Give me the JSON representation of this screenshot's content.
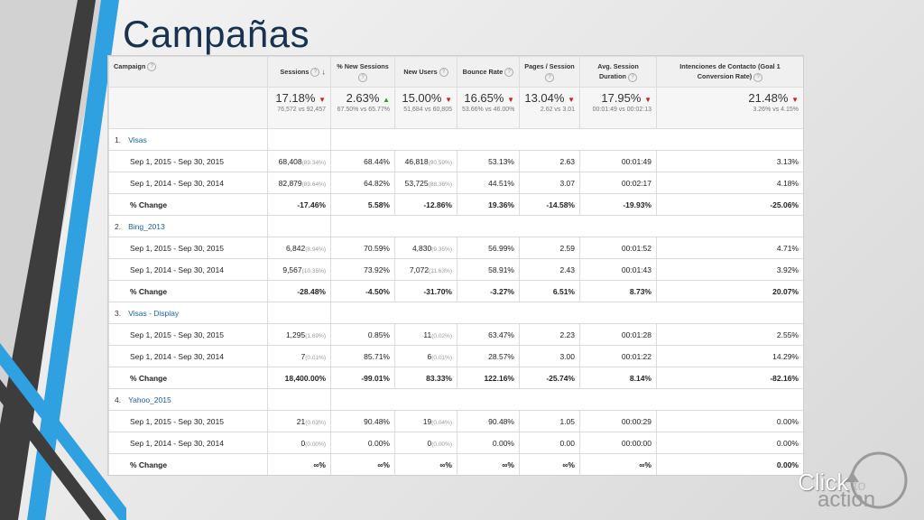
{
  "title": "Campañas",
  "logo": {
    "click": "Click",
    "to": "to",
    "action": "action"
  },
  "colors": {
    "stripe_blue": "#2fa0e0",
    "stripe_dark": "#3d3d3d",
    "title": "#16324f",
    "link": "#1a5fa8",
    "down_arrow": "#d11d1d",
    "up_arrow": "#2a9d2a"
  },
  "columns": {
    "campaign": "Campaign",
    "sessions": "Sessions",
    "new_sessions": "% New Sessions",
    "new_users": "New Users",
    "bounce_rate": "Bounce Rate",
    "pages_session": "Pages / Session",
    "avg_duration": "Avg. Session Duration",
    "intenciones": "Intenciones de Contacto (Goal 1 Conversion Rate)"
  },
  "summary": {
    "sessions": {
      "value": "17.18%",
      "detail": "76,572 vs 92,457",
      "trend": "down"
    },
    "new_sessions": {
      "value": "2.63%",
      "detail": "67.50% vs 65.77%",
      "trend": "up"
    },
    "new_users": {
      "value": "15.00%",
      "detail": "51,684 vs 60,805",
      "trend": "down"
    },
    "bounce_rate": {
      "value": "16.65%",
      "detail": "53.66% vs 46.00%",
      "trend": "down"
    },
    "pages_session": {
      "value": "13.04%",
      "detail": "2.62 vs 3.01",
      "trend": "down"
    },
    "avg_duration": {
      "value": "17.95%",
      "detail": "00:01:49 vs 00:02:13",
      "trend": "down"
    },
    "intenciones": {
      "value": "21.48%",
      "detail": "3.26% vs 4.15%",
      "trend": "down"
    }
  },
  "campaigns": [
    {
      "index": "1.",
      "name": "Visas",
      "rows": [
        {
          "label": "Sep 1, 2015 - Sep 30, 2015",
          "sessions": "68,408",
          "sessions_pct": "(89.34%)",
          "new_sessions": "68.44%",
          "new_users": "46,818",
          "new_users_pct": "(90.59%)",
          "bounce": "53.13%",
          "pages": "2.63",
          "duration": "00:01:49",
          "intenciones": "3.13%"
        },
        {
          "label": "Sep 1, 2014 - Sep 30, 2014",
          "sessions": "82,879",
          "sessions_pct": "(89.64%)",
          "new_sessions": "64.82%",
          "new_users": "53,725",
          "new_users_pct": "(88.36%)",
          "bounce": "44.51%",
          "pages": "3.07",
          "duration": "00:02:17",
          "intenciones": "4.18%"
        },
        {
          "label": "% Change",
          "sessions": "-17.46%",
          "sessions_pct": "",
          "new_sessions": "5.58%",
          "new_users": "-12.86%",
          "new_users_pct": "",
          "bounce": "19.36%",
          "pages": "-14.58%",
          "duration": "-19.93%",
          "intenciones": "-25.06%"
        }
      ]
    },
    {
      "index": "2.",
      "name": "Bing_2013",
      "rows": [
        {
          "label": "Sep 1, 2015 - Sep 30, 2015",
          "sessions": "6,842",
          "sessions_pct": "(8.94%)",
          "new_sessions": "70.59%",
          "new_users": "4,830",
          "new_users_pct": "(9.35%)",
          "bounce": "56.99%",
          "pages": "2.59",
          "duration": "00:01:52",
          "intenciones": "4.71%"
        },
        {
          "label": "Sep 1, 2014 - Sep 30, 2014",
          "sessions": "9,567",
          "sessions_pct": "(10.35%)",
          "new_sessions": "73.92%",
          "new_users": "7,072",
          "new_users_pct": "(11.63%)",
          "bounce": "58.91%",
          "pages": "2.43",
          "duration": "00:01:43",
          "intenciones": "3.92%"
        },
        {
          "label": "% Change",
          "sessions": "-28.48%",
          "sessions_pct": "",
          "new_sessions": "-4.50%",
          "new_users": "-31.70%",
          "new_users_pct": "",
          "bounce": "-3.27%",
          "pages": "6.51%",
          "duration": "8.73%",
          "intenciones": "20.07%"
        }
      ]
    },
    {
      "index": "3.",
      "name": "Visas - Display",
      "rows": [
        {
          "label": "Sep 1, 2015 - Sep 30, 2015",
          "sessions": "1,295",
          "sessions_pct": "(1.69%)",
          "new_sessions": "0.85%",
          "new_users": "11",
          "new_users_pct": "(0.02%)",
          "bounce": "63.47%",
          "pages": "2.23",
          "duration": "00:01:28",
          "intenciones": "2.55%"
        },
        {
          "label": "Sep 1, 2014 - Sep 30, 2014",
          "sessions": "7",
          "sessions_pct": "(0.01%)",
          "new_sessions": "85.71%",
          "new_users": "6",
          "new_users_pct": "(0.01%)",
          "bounce": "28.57%",
          "pages": "3.00",
          "duration": "00:01:22",
          "intenciones": "14.29%"
        },
        {
          "label": "% Change",
          "sessions": "18,400.00%",
          "sessions_pct": "",
          "new_sessions": "-99.01%",
          "new_users": "83.33%",
          "new_users_pct": "",
          "bounce": "122.16%",
          "pages": "-25.74%",
          "duration": "8.14%",
          "intenciones": "-82.16%"
        }
      ]
    },
    {
      "index": "4.",
      "name": "Yahoo_2015",
      "rows": [
        {
          "label": "Sep 1, 2015 - Sep 30, 2015",
          "sessions": "21",
          "sessions_pct": "(0.03%)",
          "new_sessions": "90.48%",
          "new_users": "19",
          "new_users_pct": "(0.04%)",
          "bounce": "90.48%",
          "pages": "1.05",
          "duration": "00:00:29",
          "intenciones": "0.00%"
        },
        {
          "label": "Sep 1, 2014 - Sep 30, 2014",
          "sessions": "0",
          "sessions_pct": "(0.00%)",
          "new_sessions": "0.00%",
          "new_users": "0",
          "new_users_pct": "(0.00%)",
          "bounce": "0.00%",
          "pages": "0.00",
          "duration": "00:00:00",
          "intenciones": "0.00%"
        },
        {
          "label": "% Change",
          "sessions": "∞%",
          "sessions_pct": "",
          "new_sessions": "∞%",
          "new_users": "∞%",
          "new_users_pct": "",
          "bounce": "∞%",
          "pages": "∞%",
          "duration": "∞%",
          "intenciones": "0.00%"
        }
      ]
    }
  ]
}
